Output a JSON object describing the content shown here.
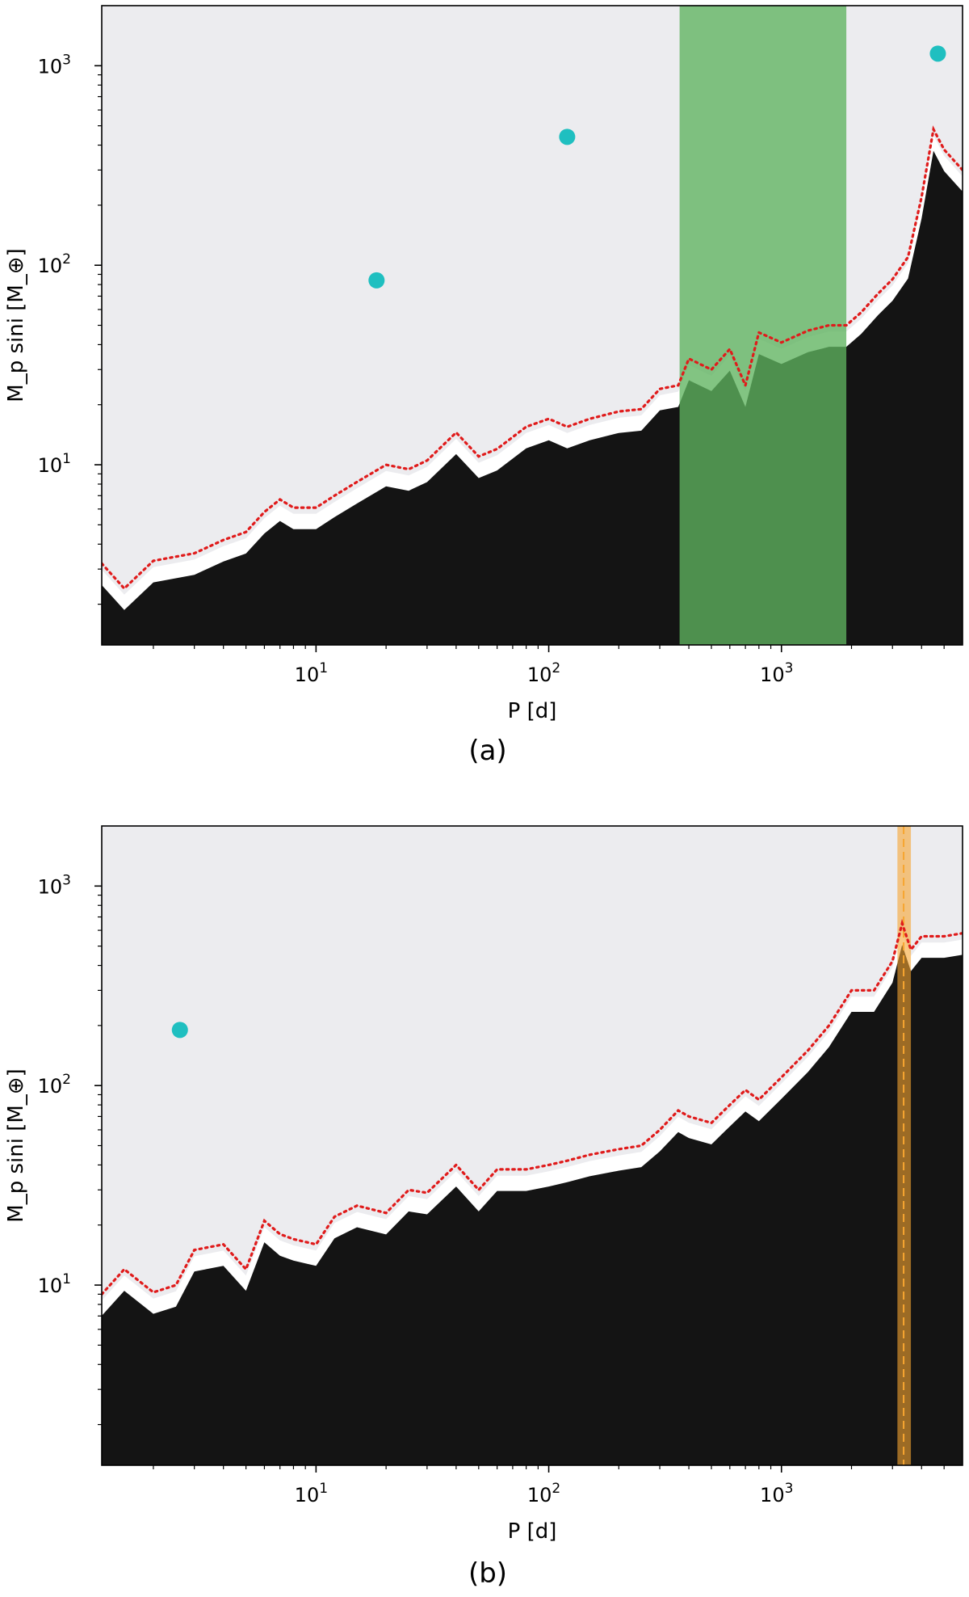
{
  "colors": {
    "background": "#ececef",
    "excluded_region": "#141414",
    "boundary_fringe": "#ffffff",
    "sensitivity_curve": "#e01b1b",
    "planet_marker": "#1fbfc0",
    "habitable_zone_band": "#5fb35f",
    "orbit_band": "#f7a531",
    "orbit_line": "#f7a531"
  },
  "chart_data": [
    {
      "type": "heatmap",
      "panel_label": "(a)",
      "xlabel": "P [d]",
      "ylabel": "M_p sini [M_⊕]",
      "xscale": "log",
      "yscale": "log",
      "xlim": [
        1.2,
        6000
      ],
      "ylim": [
        1.25,
        2000
      ],
      "xticks": [
        {
          "value": 10,
          "base": "10",
          "exp": "1"
        },
        {
          "value": 100,
          "base": "10",
          "exp": "2"
        },
        {
          "value": 1000,
          "base": "10",
          "exp": "3"
        }
      ],
      "yticks": [
        {
          "value": 10,
          "base": "10",
          "exp": "1"
        },
        {
          "value": 100,
          "base": "10",
          "exp": "2"
        },
        {
          "value": 1000,
          "base": "10",
          "exp": "3"
        }
      ],
      "detection_limit": {
        "P": [
          1.2,
          1.5,
          2,
          3,
          4,
          5,
          6,
          7,
          8,
          10,
          12,
          15,
          20,
          25,
          30,
          40,
          50,
          60,
          80,
          100,
          120,
          150,
          200,
          250,
          300,
          360,
          400,
          500,
          600,
          700,
          800,
          1000,
          1300,
          1600,
          1900,
          2200,
          2600,
          3000,
          3500,
          4000,
          4500,
          5000,
          6000
        ],
        "M": [
          3.2,
          2.4,
          3.3,
          3.6,
          4.2,
          4.6,
          5.8,
          6.7,
          6.1,
          6.1,
          7.0,
          8.2,
          10.0,
          9.5,
          10.5,
          14.5,
          11.0,
          12.0,
          15.5,
          17.0,
          15.5,
          17.0,
          18.5,
          19.0,
          24.0,
          25.0,
          34.0,
          30.0,
          38.0,
          25.0,
          46.0,
          41.0,
          47.0,
          50.0,
          50.0,
          58.0,
          72.0,
          85.0,
          110.0,
          220.0,
          480.0,
          380.0,
          300.0
        ]
      },
      "shaded_band": {
        "P_min": 365,
        "P_max": 1900
      },
      "planets": [
        {
          "P": 18.2,
          "M": 84
        },
        {
          "P": 120,
          "M": 440
        },
        {
          "P": 4700,
          "M": 1150
        }
      ]
    },
    {
      "type": "heatmap",
      "panel_label": "(b)",
      "xlabel": "P [d]",
      "ylabel": "M_p sini [M_⊕]",
      "xscale": "log",
      "yscale": "log",
      "xlim": [
        1.2,
        6000
      ],
      "ylim": [
        1.25,
        2000
      ],
      "xticks": [
        {
          "value": 10,
          "base": "10",
          "exp": "1"
        },
        {
          "value": 100,
          "base": "10",
          "exp": "2"
        },
        {
          "value": 1000,
          "base": "10",
          "exp": "3"
        }
      ],
      "yticks": [
        {
          "value": 10,
          "base": "10",
          "exp": "1"
        },
        {
          "value": 100,
          "base": "10",
          "exp": "2"
        },
        {
          "value": 1000,
          "base": "10",
          "exp": "3"
        }
      ],
      "detection_limit": {
        "P": [
          1.2,
          1.5,
          2,
          2.5,
          3,
          4,
          5,
          6,
          7,
          8,
          10,
          12,
          15,
          20,
          25,
          30,
          40,
          50,
          60,
          80,
          100,
          120,
          150,
          200,
          250,
          300,
          360,
          400,
          500,
          600,
          700,
          800,
          1000,
          1300,
          1600,
          2000,
          2500,
          3000,
          3300,
          3600,
          4000,
          5000,
          6000
        ],
        "M": [
          9.0,
          12.0,
          9.2,
          10.0,
          15.0,
          16.0,
          12.0,
          21.0,
          18.0,
          17.0,
          16.0,
          22.0,
          25.0,
          23.0,
          30.0,
          29.0,
          40.0,
          30.0,
          38.0,
          38.0,
          40.0,
          42.0,
          45.0,
          48.0,
          50.0,
          60.0,
          75.0,
          70.0,
          65.0,
          80.0,
          95.0,
          85.0,
          110.0,
          150.0,
          200.0,
          300.0,
          300.0,
          420.0,
          650.0,
          480.0,
          560.0,
          560.0,
          580.0
        ]
      },
      "shaded_band": {
        "P_min": 3150,
        "P_max": 3600
      },
      "reference_line": {
        "P": 3350
      },
      "planets": [
        {
          "P": 2.6,
          "M": 190
        }
      ]
    }
  ]
}
